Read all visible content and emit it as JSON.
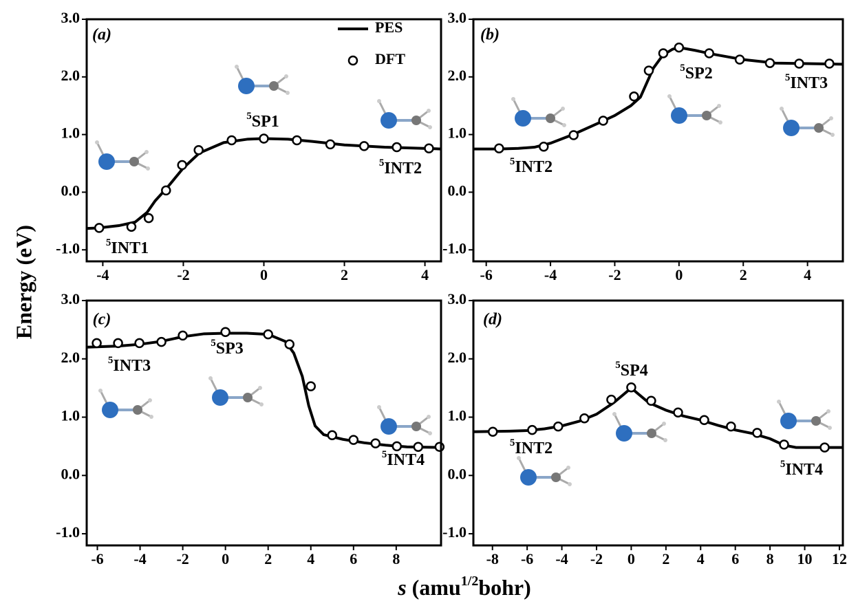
{
  "ylabel": "Energy (eV)",
  "xlabel": [
    "s",
    " (amu",
    "1/2",
    "bohr)"
  ],
  "chart_data": [
    {
      "type": "line",
      "panel_label": "(a)",
      "legend": "upper right",
      "xlim": [
        -4.4,
        4.4
      ],
      "ylim": [
        -1.2,
        3.0
      ],
      "xticks": [
        -4,
        -2,
        0,
        2,
        4
      ],
      "yticks": [
        {
          "value": -1,
          "label": "-1.0"
        },
        {
          "value": 0,
          "label": "0.0"
        },
        {
          "value": 1,
          "label": "1.0"
        },
        {
          "value": 2,
          "label": "2.0"
        },
        {
          "value": 3,
          "label": "3.0"
        }
      ],
      "series": [
        {
          "name": "PES",
          "color": "#000000",
          "x": [
            -4.4,
            -4.1,
            -3.6,
            -3.2,
            -2.9,
            -2.7,
            -2.4,
            -2.0,
            -1.6,
            -1.0,
            -0.4,
            0,
            0.6,
            1.2,
            2.0,
            3.0,
            4.4
          ],
          "values": [
            -0.63,
            -0.62,
            -0.58,
            -0.52,
            -0.35,
            -0.15,
            0.08,
            0.42,
            0.68,
            0.86,
            0.92,
            0.93,
            0.92,
            0.88,
            0.82,
            0.78,
            0.75
          ]
        },
        {
          "name": "DFT",
          "color": "#000000",
          "x": [
            -4.09,
            -3.29,
            -2.86,
            -2.43,
            -2.03,
            -1.62,
            -0.8,
            0,
            0.82,
            1.65,
            2.49,
            3.3,
            4.1
          ],
          "values": [
            -0.62,
            -0.6,
            -0.45,
            0.03,
            0.47,
            0.73,
            0.9,
            0.93,
            0.9,
            0.83,
            0.8,
            0.78,
            0.76
          ]
        }
      ],
      "annotations": [
        {
          "sup": "5",
          "text": "SP1"
        },
        {
          "sup": "5",
          "text": "INT1"
        },
        {
          "sup": "5",
          "text": "INT2"
        }
      ]
    },
    {
      "type": "line",
      "panel_label": "(b)",
      "xlim": [
        -6.4,
        5.1
      ],
      "ylim": [
        -1.2,
        3.0
      ],
      "xticks": [
        -6,
        -4,
        -2,
        0,
        2,
        4
      ],
      "yticks": [
        {
          "value": -1,
          "label": "-1.0"
        },
        {
          "value": 0,
          "label": "0.0"
        },
        {
          "value": 1,
          "label": "1.0"
        },
        {
          "value": 2,
          "label": "2.0"
        },
        {
          "value": 3,
          "label": "3.0"
        }
      ],
      "series": [
        {
          "color": "#000000",
          "x": [
            -6.4,
            -5.6,
            -5,
            -4.5,
            -4,
            -3.3,
            -2.5,
            -2,
            -1.5,
            -1.2,
            -1.0,
            -0.8,
            -0.5,
            -0.2,
            0,
            0.5,
            1,
            2,
            3,
            4,
            5.1
          ],
          "values": [
            0.75,
            0.75,
            0.76,
            0.78,
            0.85,
            1.0,
            1.2,
            1.33,
            1.5,
            1.65,
            1.9,
            2.15,
            2.38,
            2.48,
            2.51,
            2.46,
            2.4,
            2.3,
            2.24,
            2.23,
            2.22
          ]
        },
        {
          "color": "#000000",
          "x": [
            -5.6,
            -4.21,
            -3.28,
            -2.36,
            -1.4,
            -0.94,
            -0.49,
            0,
            0.94,
            1.89,
            2.83,
            3.74,
            4.68
          ],
          "values": [
            0.76,
            0.79,
            0.99,
            1.24,
            1.66,
            2.11,
            2.41,
            2.51,
            2.41,
            2.3,
            2.24,
            2.23,
            2.23
          ]
        }
      ],
      "annotations": [
        {
          "sup": "5",
          "text": "SP2"
        },
        {
          "sup": "5",
          "text": "INT3"
        },
        {
          "sup": "5",
          "text": "INT2"
        }
      ]
    },
    {
      "type": "line",
      "panel_label": "(c)",
      "xlim": [
        -6.5,
        10.1
      ],
      "ylim": [
        -1.2,
        3.0
      ],
      "xticks": [
        -6,
        -4,
        -2,
        0,
        2,
        4,
        6,
        8
      ],
      "yticks": [
        {
          "value": -1,
          "label": "-1.0"
        },
        {
          "value": 0,
          "label": "0.0"
        },
        {
          "value": 1,
          "label": "1.0"
        },
        {
          "value": 2,
          "label": "2.0"
        },
        {
          "value": 3,
          "label": "3.0"
        }
      ],
      "series": [
        {
          "color": "#000000",
          "x": [
            -6.5,
            -5,
            -4,
            -3,
            -2,
            -1,
            0,
            1,
            2,
            2.8,
            3.2,
            3.6,
            3.9,
            4.2,
            4.6,
            5.5,
            6.5,
            7.5,
            8.5,
            10.1
          ],
          "values": [
            2.2,
            2.22,
            2.25,
            2.3,
            2.38,
            2.43,
            2.44,
            2.44,
            2.42,
            2.3,
            2.1,
            1.7,
            1.2,
            0.85,
            0.7,
            0.62,
            0.56,
            0.52,
            0.49,
            0.48
          ]
        },
        {
          "color": "#000000",
          "x": [
            -6.03,
            -5.03,
            -4.03,
            -3.0,
            -2.0,
            0,
            2.0,
            3.0,
            4.0,
            5.0,
            6.0,
            7.03,
            8.03,
            9.03,
            10.03
          ],
          "values": [
            2.27,
            2.27,
            2.27,
            2.29,
            2.4,
            2.46,
            2.42,
            2.25,
            1.53,
            0.69,
            0.61,
            0.55,
            0.5,
            0.49,
            0.49
          ]
        }
      ],
      "annotations": [
        {
          "sup": "5",
          "text": "INT3"
        },
        {
          "sup": "5",
          "text": "SP3"
        },
        {
          "sup": "5",
          "text": "INT4"
        }
      ]
    },
    {
      "type": "line",
      "panel_label": "(d)",
      "xlim": [
        -9.1,
        12.2
      ],
      "ylim": [
        -1.2,
        3.0
      ],
      "xticks": [
        -8,
        -6,
        -4,
        -2,
        0,
        2,
        4,
        6,
        8,
        10,
        12
      ],
      "yticks": [
        {
          "value": -1,
          "label": "-1.0"
        },
        {
          "value": 0,
          "label": "0.0"
        },
        {
          "value": 1,
          "label": "1.0"
        },
        {
          "value": 2,
          "label": "2.0"
        },
        {
          "value": 3,
          "label": "3.0"
        }
      ],
      "series": [
        {
          "color": "#000000",
          "x": [
            -9.1,
            -7,
            -6,
            -5,
            -4,
            -3,
            -2,
            -1,
            -0.4,
            0,
            0.4,
            1,
            2,
            3,
            4,
            5,
            6,
            7,
            8,
            8.8,
            9.5,
            12.2
          ],
          "values": [
            0.75,
            0.76,
            0.77,
            0.8,
            0.85,
            0.93,
            1.05,
            1.25,
            1.4,
            1.5,
            1.4,
            1.25,
            1.12,
            1.02,
            0.95,
            0.86,
            0.78,
            0.72,
            0.63,
            0.52,
            0.48,
            0.48
          ]
        },
        {
          "color": "#000000",
          "x": [
            -7.98,
            -5.71,
            -4.21,
            -2.7,
            -1.15,
            0,
            1.15,
            2.7,
            4.21,
            5.75,
            7.26,
            8.81,
            11.15
          ],
          "values": [
            0.75,
            0.78,
            0.84,
            0.98,
            1.3,
            1.51,
            1.28,
            1.08,
            0.95,
            0.84,
            0.73,
            0.53,
            0.48
          ]
        }
      ],
      "annotations": [
        {
          "sup": "5",
          "text": "SP4"
        },
        {
          "sup": "5",
          "text": "INT2"
        },
        {
          "sup": "5",
          "text": "INT4"
        }
      ]
    }
  ]
}
